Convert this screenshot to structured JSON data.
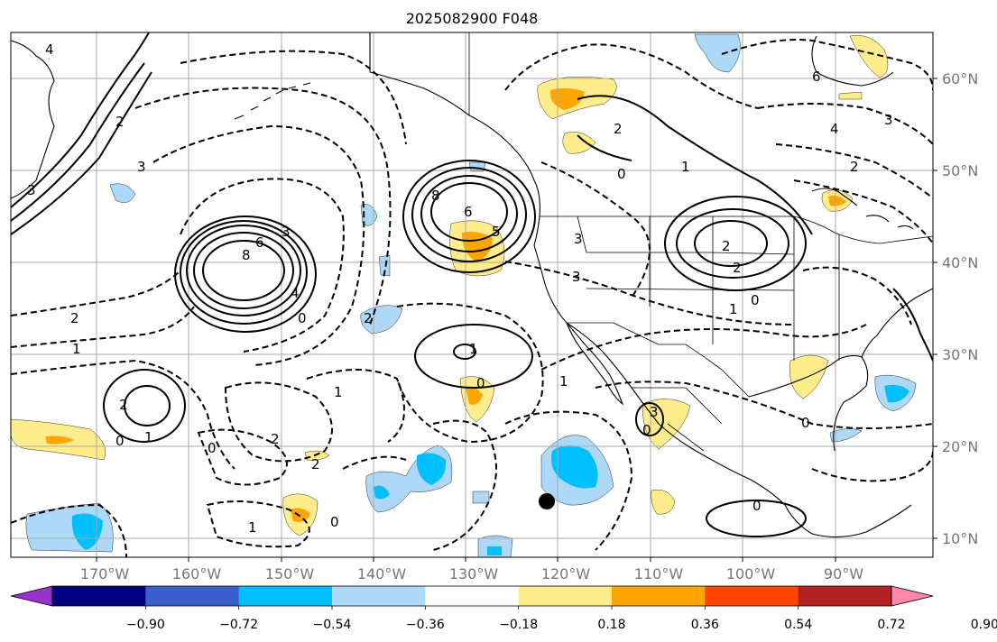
{
  "title": "2025082900 F048",
  "lat_labels": [
    "60°N",
    "50°N",
    "40°N",
    "30°N",
    "20°N",
    "10°N"
  ],
  "lon_labels": [
    "170°W",
    "160°W",
    "150°W",
    "140°W",
    "130°W",
    "120°W",
    "110°W",
    "100°W",
    "90°W"
  ],
  "colorbar": {
    "colors": [
      "#9932cc",
      "#000080",
      "#3a5fcd",
      "#00bfff",
      "#add8f8",
      "#ffffff",
      "#ffec8b",
      "#ffa500",
      "#ff4500",
      "#b22222",
      "#ff88aa"
    ],
    "tick_labels": [
      "−0.90",
      "−0.72",
      "−0.54",
      "−0.36",
      "−0.18",
      "0.18",
      "0.36",
      "0.54",
      "0.72",
      "0.90"
    ]
  },
  "contour_labels": [
    "4",
    "2",
    "3",
    "3",
    "6",
    "8",
    "3",
    "4",
    "2",
    "1",
    "2",
    "1",
    "0",
    "1",
    "2",
    "1",
    "6",
    "8",
    "5",
    "3",
    "1",
    "0",
    "2",
    "3",
    "2",
    "0",
    "1",
    "6",
    "4",
    "2",
    "3",
    "2",
    "2",
    "0",
    "1",
    "0",
    "0",
    "1",
    "2",
    "0",
    "3",
    "0",
    "0",
    "0"
  ],
  "colors": {
    "fill_pos_light": "#ffec8b",
    "fill_pos_mid": "#ffa500",
    "fill_neg_light": "#add8f8",
    "fill_neg_mid": "#00bfff"
  },
  "marker": {
    "name": "storm-center-dot"
  }
}
